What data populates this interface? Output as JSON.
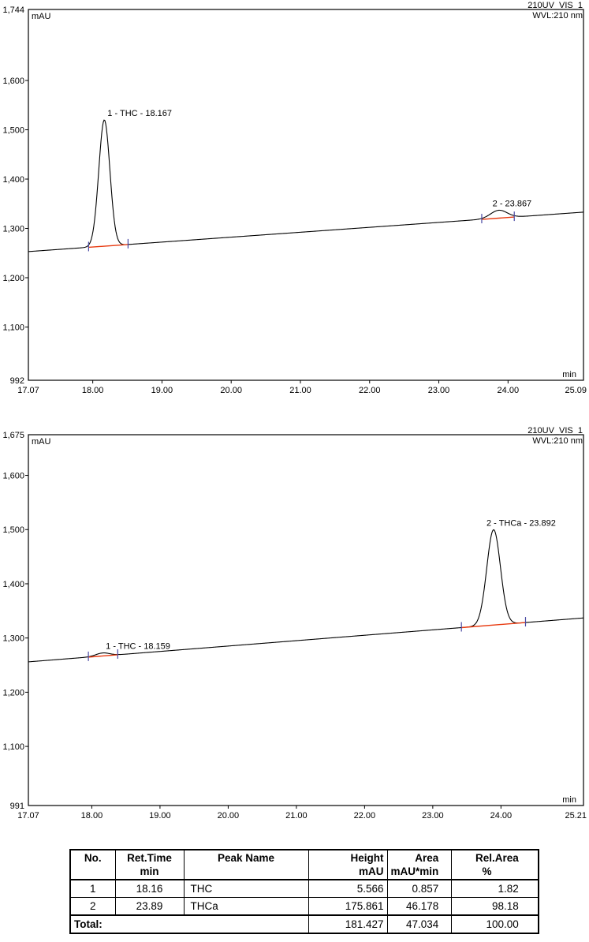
{
  "colors": {
    "trace": "#000000",
    "integration": "#e8390f",
    "delimiter": "#4949a3",
    "frame": "#000000",
    "text": "#000000"
  },
  "chart_data": [
    {
      "type": "line",
      "channel": "210UV_VIS_1",
      "wavelength": "WVL:210 nm",
      "ylabel": "mAU",
      "xlabel": "min",
      "x_range": [
        17.07,
        25.09
      ],
      "y_range": [
        992,
        1744
      ],
      "x_end_labels": [
        "17.07",
        "25.09"
      ],
      "y_end_labels": [
        "1,744",
        "992"
      ],
      "x_ticks": [
        {
          "value": 18,
          "label": "18.00"
        },
        {
          "value": 19,
          "label": "19.00"
        },
        {
          "value": 20,
          "label": "20.00"
        },
        {
          "value": 21,
          "label": "21.00"
        },
        {
          "value": 22,
          "label": "22.00"
        },
        {
          "value": 23,
          "label": "23.00"
        },
        {
          "value": 24,
          "label": "24.00"
        }
      ],
      "y_ticks": [
        {
          "value": 1100,
          "label": "1,100"
        },
        {
          "value": 1200,
          "label": "1,200"
        },
        {
          "value": 1300,
          "label": "1,300"
        },
        {
          "value": 1400,
          "label": "1,400"
        },
        {
          "value": 1500,
          "label": "1,500"
        },
        {
          "value": 1600,
          "label": "1,600"
        }
      ],
      "baseline": {
        "start_mau": 1253,
        "end_mau": 1333
      },
      "peaks": [
        {
          "number": 1,
          "name": "THC",
          "retention_min": 18.167,
          "label": "1 - THC - 18.167",
          "height_mau": 256,
          "sigma_min": 0.08,
          "integration_start_min": 17.94,
          "integration_end_min": 18.51,
          "label_dx": 4
        },
        {
          "number": 2,
          "name": "",
          "retention_min": 23.867,
          "label": "2 - 23.867",
          "height_mau": 16,
          "sigma_min": 0.12,
          "integration_start_min": 23.62,
          "integration_end_min": 24.09,
          "label_dx": -8
        }
      ]
    },
    {
      "type": "line",
      "channel": "210UV_VIS_1",
      "wavelength": "WVL:210 nm",
      "ylabel": "mAU",
      "xlabel": "min",
      "x_range": [
        17.07,
        25.21
      ],
      "y_range": [
        991,
        1675
      ],
      "x_end_labels": [
        "17.07",
        "25.21"
      ],
      "y_end_labels": [
        "1,675",
        "991"
      ],
      "x_ticks": [
        {
          "value": 18,
          "label": "18.00"
        },
        {
          "value": 19,
          "label": "19.00"
        },
        {
          "value": 20,
          "label": "20.00"
        },
        {
          "value": 21,
          "label": "21.00"
        },
        {
          "value": 22,
          "label": "22.00"
        },
        {
          "value": 23,
          "label": "23.00"
        },
        {
          "value": 24,
          "label": "24.00"
        }
      ],
      "y_ticks": [
        {
          "value": 1100,
          "label": "1,100"
        },
        {
          "value": 1200,
          "label": "1,200"
        },
        {
          "value": 1300,
          "label": "1,300"
        },
        {
          "value": 1400,
          "label": "1,400"
        },
        {
          "value": 1500,
          "label": "1,500"
        },
        {
          "value": 1600,
          "label": "1,600"
        }
      ],
      "baseline": {
        "start_mau": 1256,
        "end_mau": 1337
      },
      "peaks": [
        {
          "number": 1,
          "name": "THC",
          "retention_min": 18.159,
          "label": "1 - THC - 18.159",
          "height_mau": 5.566,
          "sigma_min": 0.1,
          "integration_start_min": 17.95,
          "integration_end_min": 18.38,
          "label_dx": 4
        },
        {
          "number": 2,
          "name": "THCa",
          "retention_min": 23.892,
          "label": "2 - THCa - 23.892",
          "height_mau": 175.861,
          "sigma_min": 0.1,
          "integration_start_min": 23.42,
          "integration_end_min": 24.36,
          "label_dx": -9
        }
      ]
    }
  ],
  "results_table": {
    "columns": [
      {
        "name": "No.",
        "unit": ""
      },
      {
        "name": "Ret.Time",
        "unit": "min"
      },
      {
        "name": "Peak Name",
        "unit": ""
      },
      {
        "name": "Height",
        "unit": "mAU"
      },
      {
        "name": "Area",
        "unit": "mAU*min"
      },
      {
        "name": "Rel.Area",
        "unit": "%"
      }
    ],
    "rows": [
      [
        "1",
        "18.16",
        "THC",
        "5.566",
        "0.857",
        "1.82"
      ],
      [
        "2",
        "23.89",
        "THCa",
        "175.861",
        "46.178",
        "98.18"
      ]
    ],
    "total": {
      "label": "Total:",
      "height": "181.427",
      "area": "47.034",
      "rel_area": "100.00"
    }
  }
}
